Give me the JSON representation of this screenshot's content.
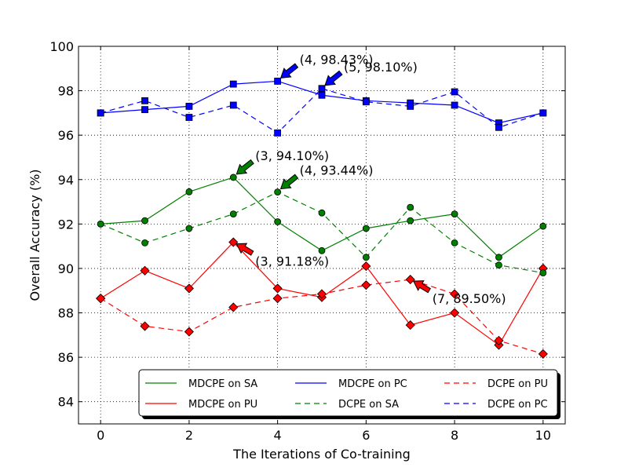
{
  "chart_data": {
    "type": "line",
    "xlabel": "The Iterations of Co-training",
    "ylabel": "Overall Accuracy (%)",
    "xlim": [
      -0.5,
      10.5
    ],
    "ylim": [
      83,
      100
    ],
    "xticks": [
      0,
      2,
      4,
      6,
      8,
      10
    ],
    "yticks": [
      84,
      86,
      88,
      90,
      92,
      94,
      96,
      98,
      100
    ],
    "grid": true,
    "legend_position": "bottom",
    "x": [
      0,
      1,
      2,
      3,
      4,
      5,
      6,
      7,
      8,
      9,
      10
    ],
    "series": [
      {
        "name": "MDCPE on SA",
        "color": "#008000",
        "dash": "solid",
        "marker": "circle",
        "values": [
          92.0,
          92.15,
          93.45,
          94.1,
          92.1,
          90.8,
          91.8,
          92.15,
          92.45,
          90.5,
          91.9
        ]
      },
      {
        "name": "MDCPE on PU",
        "color": "#ff0000",
        "dash": "solid",
        "marker": "diamond",
        "values": [
          88.65,
          89.9,
          89.1,
          91.18,
          89.1,
          88.7,
          90.1,
          87.45,
          88.0,
          86.55,
          90.0
        ]
      },
      {
        "name": "MDCPE on PC",
        "color": "#0000ff",
        "dash": "solid",
        "marker": "square",
        "values": [
          97.0,
          97.15,
          97.3,
          98.3,
          98.43,
          97.8,
          97.55,
          97.45,
          97.35,
          96.55,
          97.0
        ]
      },
      {
        "name": "DCPE on SA",
        "color": "#008000",
        "dash": "dashed",
        "marker": "circle",
        "values": [
          92.0,
          91.15,
          91.8,
          92.45,
          93.44,
          92.5,
          90.5,
          92.75,
          91.15,
          90.15,
          89.8
        ]
      },
      {
        "name": "DCPE on PU",
        "color": "#ff0000",
        "dash": "dashed",
        "marker": "diamond",
        "values": [
          88.65,
          87.4,
          87.15,
          88.25,
          88.65,
          88.85,
          89.25,
          89.5,
          88.85,
          86.75,
          86.15
        ]
      },
      {
        "name": "DCPE on PC",
        "color": "#0000ff",
        "dash": "dashed",
        "marker": "square",
        "values": [
          97.0,
          97.55,
          96.8,
          97.35,
          96.1,
          98.1,
          97.5,
          97.3,
          97.95,
          96.35,
          97.0
        ]
      }
    ],
    "annotations": [
      {
        "text": "(4, 98.43%)",
        "x": 4,
        "y": 98.43,
        "color": "#0000ff",
        "text_side": "upper-right"
      },
      {
        "text": "(5, 98.10%)",
        "x": 5,
        "y": 98.1,
        "color": "#0000ff",
        "text_side": "upper-right"
      },
      {
        "text": "(3, 94.10%)",
        "x": 3,
        "y": 94.1,
        "color": "#008000",
        "text_side": "upper-right"
      },
      {
        "text": "(4, 93.44%)",
        "x": 4,
        "y": 93.44,
        "color": "#008000",
        "text_side": "upper-right"
      },
      {
        "text": "(3, 91.18%)",
        "x": 3,
        "y": 91.18,
        "color": "#ff0000",
        "text_side": "lower-right"
      },
      {
        "text": "(7, 89.50%)",
        "x": 7,
        "y": 89.5,
        "color": "#ff0000",
        "text_side": "lower-right"
      }
    ],
    "legend_order": [
      0,
      1,
      2,
      3,
      4,
      5
    ]
  }
}
